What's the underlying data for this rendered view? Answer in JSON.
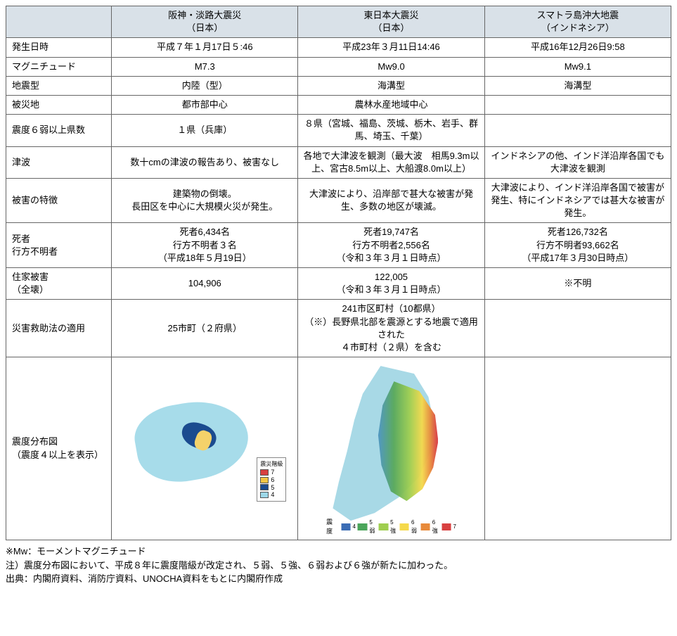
{
  "headers": {
    "col1": "阪神・淡路大震災\n（日本）",
    "col2": "東日本大震災\n（日本）",
    "col3": "スマトラ島沖大地震\n（インドネシア）"
  },
  "rows": [
    {
      "label": "発生日時",
      "c1": "平成７年１月17日５:46",
      "c2": "平成23年３月11日14:46",
      "c3": "平成16年12月26日9:58"
    },
    {
      "label": "マグニチュード",
      "c1": "M7.3",
      "c2": "Mw9.0",
      "c3": "Mw9.1"
    },
    {
      "label": "地震型",
      "c1": "内陸（型）",
      "c2": "海溝型",
      "c3": "海溝型"
    },
    {
      "label": "被災地",
      "c1": "都市部中心",
      "c2": "農林水産地域中心",
      "c3": ""
    },
    {
      "label": "震度６弱以上県数",
      "c1": "１県（兵庫）",
      "c2": "８県（宮城、福島、茨城、栃木、岩手、群馬、埼玉、千葉）",
      "c3": ""
    },
    {
      "label": "津波",
      "c1": "数十cmの津波の報告あり、被害なし",
      "c2": "各地で大津波を観測（最大波　相馬9.3m以上、宮古8.5m以上、大船渡8.0m以上）",
      "c3": "インドネシアの他、インド洋沿岸各国でも大津波を観測"
    },
    {
      "label": "被害の特徴",
      "c1": "建築物の倒壊。\n長田区を中心に大規模火災が発生。",
      "c2": "大津波により、沿岸部で甚大な被害が発生、多数の地区が壊滅。",
      "c3": "大津波により、インド洋沿岸各国で被害が発生、特にインドネシアでは甚大な被害が発生。"
    },
    {
      "label": "死者\n行方不明者",
      "c1": "死者6,434名\n行方不明者３名\n（平成18年５月19日）",
      "c2": "死者19,747名\n行方不明者2,556名\n（令和３年３月１日時点）",
      "c3": "死者126,732名\n行方不明者93,662名\n（平成17年３月30日時点）"
    },
    {
      "label": "住家被害\n（全壊）",
      "c1": "104,906",
      "c2": "122,005\n（令和３年３月１日時点）",
      "c3": "※不明"
    },
    {
      "label": "災害救助法の適用",
      "c1": "25市町（２府県）",
      "c2": "241市区町村（10都県）\n（※）長野県北部を震源とする地震で適用された\n４市町村（２県）を含む",
      "c3": ""
    }
  ],
  "mapRowLabel": "震度分布図\n（震度４以上を表示）",
  "legend1": {
    "title": "震災階級",
    "items": [
      {
        "color": "#d84040",
        "label": "7"
      },
      {
        "color": "#f3c542",
        "label": "6"
      },
      {
        "color": "#1b4b8f",
        "label": "5"
      },
      {
        "color": "#9dd8e8",
        "label": "4"
      }
    ]
  },
  "legend2": {
    "prefix": "震度",
    "items": [
      {
        "color": "#3b6db5",
        "label": "4"
      },
      {
        "color": "#4aa55a",
        "label": "5弱"
      },
      {
        "color": "#9fce4f",
        "label": "5強"
      },
      {
        "color": "#f5d94a",
        "label": "6弱"
      },
      {
        "color": "#e88a3a",
        "label": "6強"
      },
      {
        "color": "#d84040",
        "label": "7"
      }
    ]
  },
  "notes": {
    "n1": "※Mw：モーメントマグニチュード",
    "n2": "注）震度分布図において、平成８年に震度階級が改定され、５弱、５強、６弱および６強が新たに加わった。",
    "n3": "出典：内閣府資料、消防庁資料、UNOCHA資料をもとに内閣府作成"
  }
}
